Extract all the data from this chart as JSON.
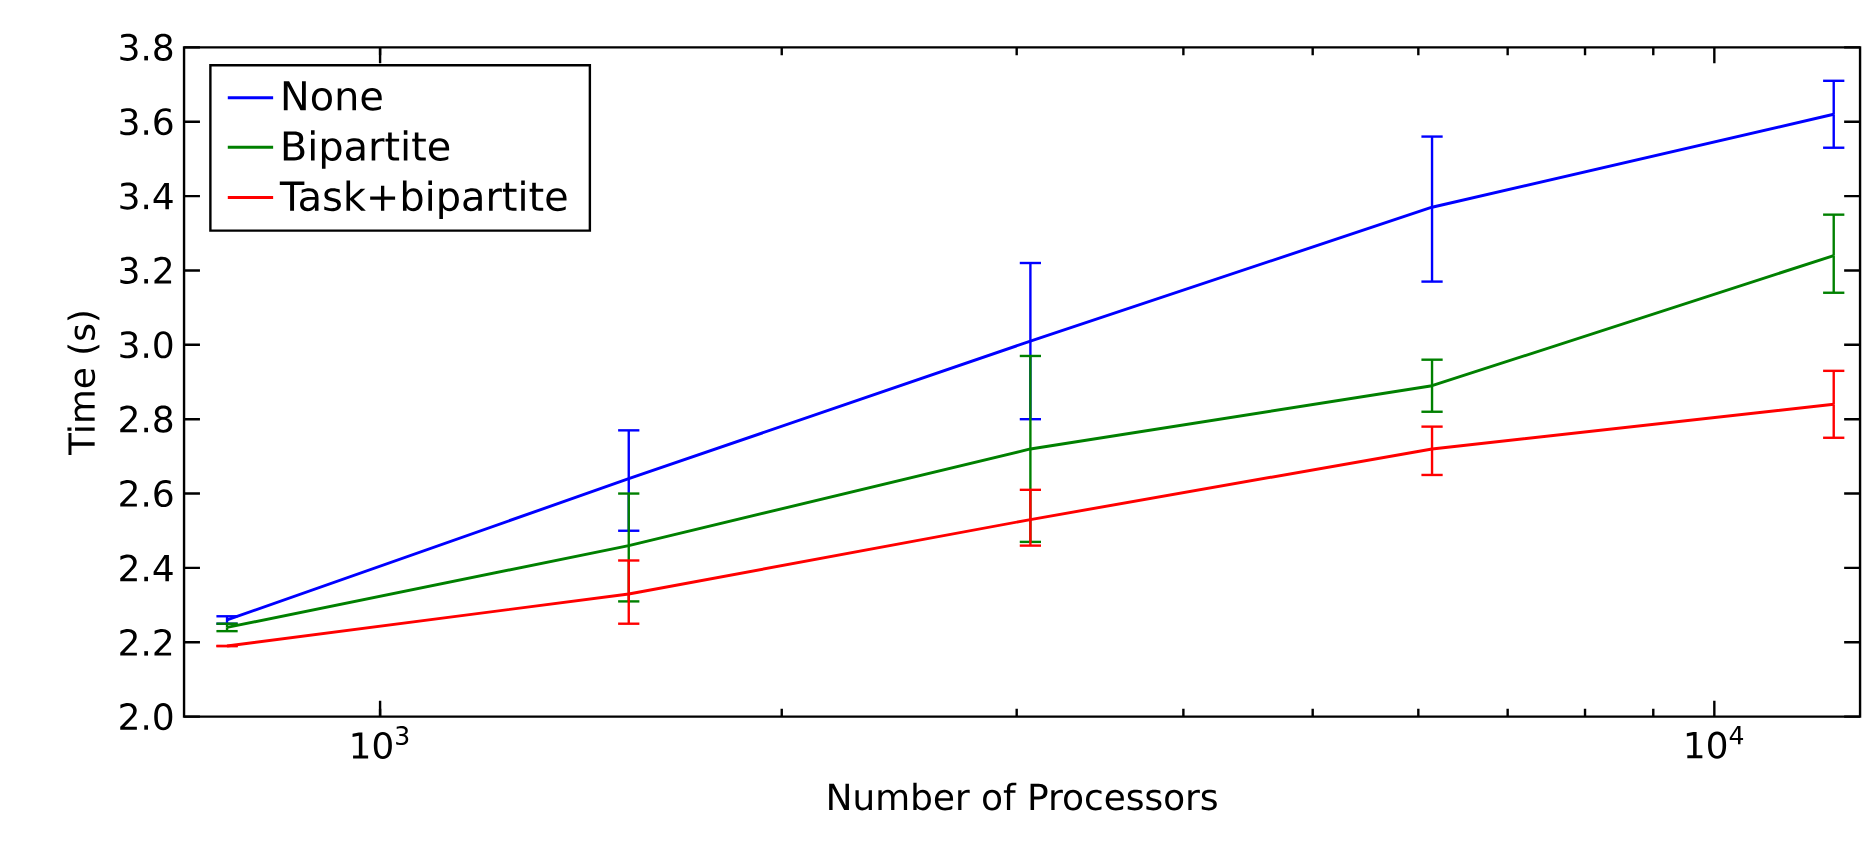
{
  "chart_data": {
    "type": "line",
    "xlabel": "Number of Processors",
    "ylabel": "Time (s)",
    "log": "x",
    "legend": "top left",
    "grid": false,
    "marker": "none",
    "line_style": "solid",
    "x": [
      768,
      1536,
      3072,
      6144,
      12288
    ],
    "xlim": [
      713,
      12860
    ],
    "xticks": [
      {
        "value": 1000,
        "label": "10$^{3}$"
      },
      {
        "value": 10000,
        "label": "10$^{4}$"
      }
    ],
    "ylim": [
      2.0,
      3.8
    ],
    "yticks": [
      {
        "value": 2.0,
        "label": "2.0"
      },
      2.2,
      2.4,
      2.6,
      2.8,
      {
        "value": 3.0,
        "label": "3.0"
      },
      3.2,
      3.4,
      3.6,
      3.8
    ],
    "series": [
      {
        "name": "None",
        "color": "#0000ff",
        "values": [
          2.26,
          2.64,
          3.01,
          3.37,
          3.62
        ],
        "errors": [
          [
            2.25,
            2.27
          ],
          [
            2.5,
            2.77
          ],
          [
            2.8,
            3.22
          ],
          [
            3.17,
            3.56
          ],
          [
            3.53,
            3.71
          ]
        ]
      },
      {
        "name": "Bipartite",
        "color": "#008000",
        "values": [
          2.24,
          2.46,
          2.72,
          2.89,
          3.24
        ],
        "errors": [
          [
            2.23,
            2.25
          ],
          [
            2.31,
            2.6
          ],
          [
            2.47,
            2.97
          ],
          [
            2.82,
            2.96
          ],
          [
            3.14,
            3.35
          ]
        ]
      },
      {
        "name": "Task+bipartite",
        "color": "#ff0000",
        "values": [
          2.19,
          2.33,
          2.53,
          2.72,
          2.84
        ],
        "errors": [
          null,
          [
            2.25,
            2.42
          ],
          [
            2.46,
            2.61
          ],
          [
            2.65,
            2.78
          ],
          [
            2.75,
            2.93
          ]
        ]
      }
    ]
  }
}
